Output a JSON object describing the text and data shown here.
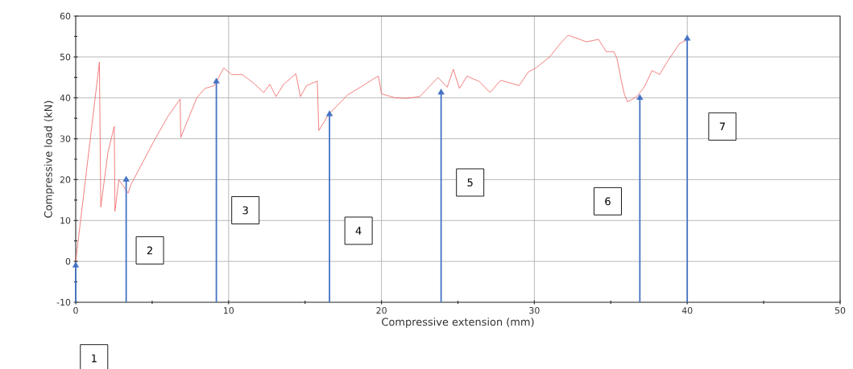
{
  "chart_data": {
    "type": "line",
    "xlabel": "Compressive extension (mm)",
    "ylabel": "Compressive load (kN)",
    "xlim": [
      0,
      50
    ],
    "ylim": [
      -10,
      60
    ],
    "xticks": [
      0,
      10,
      20,
      30,
      40,
      50
    ],
    "yticks": [
      -10,
      0,
      10,
      20,
      30,
      40,
      50,
      60
    ],
    "grid": true,
    "marker": "none",
    "line_style": "solid",
    "series": [
      {
        "color": "#f06060",
        "x": [
          0,
          1.55,
          1.64,
          2.11,
          2.52,
          2.57,
          2.82,
          3.43,
          3.6,
          5.1,
          6.0,
          6.83,
          6.87,
          7.13,
          7.92,
          8.45,
          9.07,
          9.68,
          10.2,
          10.9,
          11.6,
          12.3,
          12.7,
          13.1,
          13.6,
          14.4,
          14.7,
          15.1,
          15.8,
          15.9,
          16.55,
          17.78,
          18.66,
          19.5,
          19.8,
          20.0,
          20.9,
          21.7,
          22.5,
          23.7,
          24.3,
          24.7,
          25.1,
          25.6,
          26.4,
          27.1,
          27.8,
          29.0,
          29.6,
          30.1,
          31.0,
          31.7,
          32.2,
          32.7,
          33.4,
          34.2,
          34.7,
          35.2,
          35.4,
          35.7,
          35.9,
          36.1,
          36.7,
          37.2,
          37.7,
          38.2,
          38.6,
          39.5,
          39.9
        ],
        "values": [
          0,
          48.7,
          13.3,
          26.7,
          33,
          12.3,
          20,
          16.7,
          18.7,
          29.3,
          35.3,
          39.7,
          30.3,
          32.7,
          40,
          42.3,
          43,
          47.3,
          45.7,
          45.7,
          43.7,
          41.3,
          43.3,
          40.3,
          43.3,
          45.9,
          40.3,
          43,
          44.1,
          32,
          36,
          40.7,
          42.7,
          44.7,
          45.3,
          41,
          40,
          39.9,
          40.3,
          45,
          42.6,
          47,
          42.3,
          45.3,
          44,
          41.3,
          44.3,
          43,
          46.3,
          47.3,
          50,
          53.3,
          55.3,
          54.7,
          53.7,
          54.3,
          51.3,
          51.3,
          49.7,
          44,
          40.7,
          39,
          40.3,
          42.7,
          46.7,
          45.7,
          48.3,
          53.3,
          54
        ]
      },
      {
        "type": "scatter",
        "color": "#4472c4",
        "marker": "triangle",
        "x": [
          0,
          3.3,
          9.2,
          16.6,
          23.9,
          36.9,
          40.0
        ],
        "values": [
          -1,
          20,
          44,
          36,
          41.3,
          40,
          54.5
        ],
        "errors": [
          [
            -10,
            -1
          ],
          [
            -10,
            20
          ],
          [
            -10,
            44
          ],
          [
            -10,
            36
          ],
          [
            -10,
            41.3
          ],
          [
            -10,
            40
          ],
          [
            -10,
            54.5
          ]
        ]
      }
    ],
    "annotations": [
      "1",
      "2",
      "3",
      "4",
      "5",
      "6",
      "7"
    ]
  }
}
